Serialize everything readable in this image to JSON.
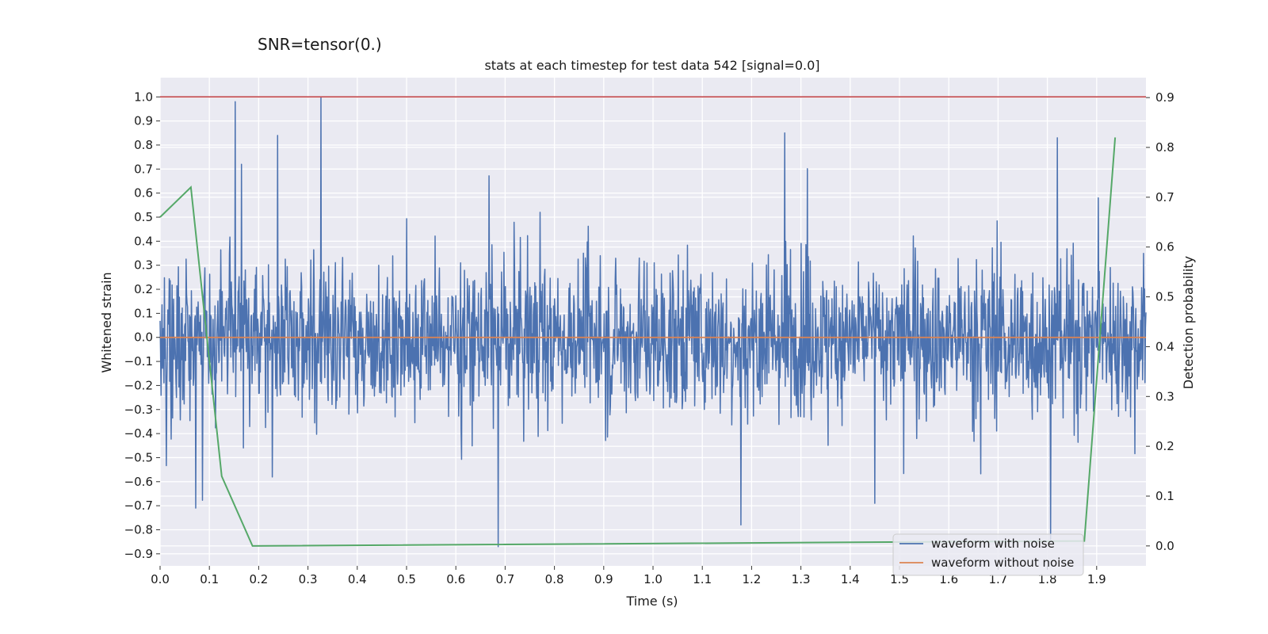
{
  "chart_data": {
    "type": "line",
    "suptitle": "SNR=tensor(0.)",
    "title": "stats at each timestep for test data 542 [signal=0.0]",
    "xlabel": "Time (s)",
    "ylabel": "Whitened strain",
    "ylabel_right": "Detection probability",
    "xlim": [
      0.0,
      2.0
    ],
    "ylim": [
      -0.95,
      1.08
    ],
    "ylim_right": [
      -0.04,
      0.94
    ],
    "xticks": [
      0.0,
      0.1,
      0.2,
      0.3,
      0.4,
      0.5,
      0.6,
      0.7,
      0.8,
      0.9,
      1.0,
      1.1,
      1.2,
      1.3,
      1.4,
      1.5,
      1.6,
      1.7,
      1.8,
      1.9
    ],
    "xtick_labels": [
      "0.0",
      "0.1",
      "0.2",
      "0.3",
      "0.4",
      "0.5",
      "0.6",
      "0.7",
      "0.8",
      "0.9",
      "1.0",
      "1.1",
      "1.2",
      "1.3",
      "1.4",
      "1.5",
      "1.6",
      "1.7",
      "1.8",
      "1.9"
    ],
    "yticks": [
      1.0,
      0.9,
      0.8,
      0.7,
      0.6,
      0.5,
      0.4,
      0.3,
      0.2,
      0.1,
      0.0,
      -0.1,
      -0.2,
      -0.3,
      -0.4,
      -0.5,
      -0.6,
      -0.7,
      -0.8,
      -0.9
    ],
    "ytick_labels": [
      "1.0",
      "0.9",
      "0.8",
      "0.7",
      "0.6",
      "0.5",
      "0.4",
      "0.3",
      "0.2",
      "0.1",
      "0.0",
      "−0.1",
      "−0.2",
      "−0.3",
      "−0.4",
      "−0.5",
      "−0.6",
      "−0.7",
      "−0.8",
      "−0.9"
    ],
    "yticks_right": [
      0.9,
      0.8,
      0.7,
      0.6,
      0.5,
      0.4,
      0.3,
      0.2,
      0.1,
      0.0
    ],
    "ytick_right_labels": [
      "0.9",
      "0.8",
      "0.7",
      "0.6",
      "0.5",
      "0.4",
      "0.3",
      "0.2",
      "0.1",
      "0.0"
    ],
    "grid": true,
    "legend_position": "bottom-right",
    "colors": {
      "background": "#eaeaf2",
      "grid": "#ffffff",
      "noise": "#4c72b0",
      "clean": "#dd8452",
      "probability": "#55a868",
      "threshold": "#c44e52"
    },
    "series": [
      {
        "name": "waveform with noise",
        "axis": "left",
        "style": "dense-noise",
        "samples": 2048,
        "notable_peaks": [
          {
            "x": 0.152,
            "y": 0.98
          },
          {
            "x": 0.326,
            "y": 1.0
          },
          {
            "x": 0.238,
            "y": 0.84
          },
          {
            "x": 1.267,
            "y": 0.85
          },
          {
            "x": 1.82,
            "y": 0.83
          },
          {
            "x": 0.686,
            "y": -0.87
          },
          {
            "x": 1.807,
            "y": -0.84
          },
          {
            "x": 0.072,
            "y": -0.71
          },
          {
            "x": 1.178,
            "y": -0.78
          },
          {
            "x": 1.45,
            "y": -0.69
          }
        ]
      },
      {
        "name": "waveform without noise",
        "axis": "left",
        "x": [
          0.0,
          2.0
        ],
        "y": [
          0.0,
          0.0
        ]
      },
      {
        "axis": "right",
        "x": [
          0.0,
          0.0625,
          0.125,
          0.1875,
          1.875,
          1.9375
        ],
        "y": [
          0.66,
          0.72,
          0.14,
          0.0,
          0.01,
          0.82
        ]
      },
      {
        "axis": "left",
        "style": "threshold",
        "x": [
          0.0,
          2.0
        ],
        "y": [
          1.0,
          1.0
        ]
      }
    ]
  }
}
